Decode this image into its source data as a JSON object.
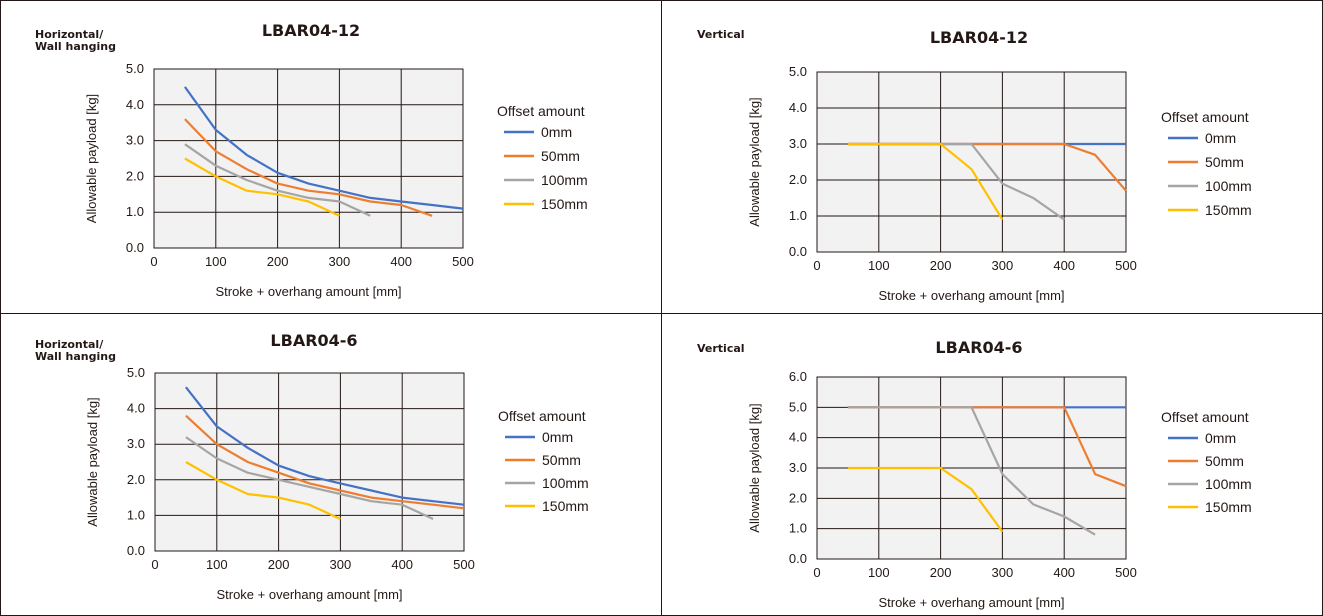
{
  "colors": {
    "border": "#231815",
    "plot_bg": "#f2f2f2",
    "grid": "#231815",
    "text": "#231815"
  },
  "legend": {
    "title": "Offset amount"
  },
  "chart_data": [
    {
      "type": "line",
      "mounting": [
        "Horizontal/",
        "Wall hanging"
      ],
      "title": "LBAR04-12",
      "xlabel": "Stroke + overhang amount [mm]",
      "ylabel": "Allowable payload [kg]",
      "xlim": [
        0,
        500
      ],
      "ylim": [
        0,
        5
      ],
      "xticks": [
        0,
        100,
        200,
        300,
        400,
        500
      ],
      "xtick_labels": [
        "0",
        "100",
        "200",
        "300",
        "400",
        "500"
      ],
      "yticks": [
        0,
        1,
        2,
        3,
        4,
        5
      ],
      "ytick_labels": [
        "0.0",
        "1.0",
        "2.0",
        "3.0",
        "4.0",
        "5.0"
      ],
      "grid": true,
      "legend_position": "right",
      "series": [
        {
          "name": "0mm",
          "color": "#4472c4",
          "points": [
            [
              50,
              4.5
            ],
            [
              100,
              3.3
            ],
            [
              150,
              2.6
            ],
            [
              200,
              2.1
            ],
            [
              250,
              1.8
            ],
            [
              300,
              1.6
            ],
            [
              350,
              1.4
            ],
            [
              400,
              1.3
            ],
            [
              450,
              1.2
            ],
            [
              500,
              1.1
            ]
          ]
        },
        {
          "name": "50mm",
          "color": "#ed7d31",
          "points": [
            [
              50,
              3.6
            ],
            [
              100,
              2.7
            ],
            [
              150,
              2.2
            ],
            [
              200,
              1.8
            ],
            [
              250,
              1.6
            ],
            [
              300,
              1.5
            ],
            [
              350,
              1.3
            ],
            [
              400,
              1.2
            ],
            [
              450,
              0.9
            ]
          ]
        },
        {
          "name": "100mm",
          "color": "#a5a5a5",
          "points": [
            [
              50,
              2.9
            ],
            [
              100,
              2.3
            ],
            [
              150,
              1.9
            ],
            [
              200,
              1.6
            ],
            [
              250,
              1.4
            ],
            [
              300,
              1.3
            ],
            [
              350,
              0.9
            ]
          ]
        },
        {
          "name": "150mm",
          "color": "#ffc000",
          "points": [
            [
              50,
              2.5
            ],
            [
              100,
              2.0
            ],
            [
              150,
              1.6
            ],
            [
              200,
              1.5
            ],
            [
              250,
              1.3
            ],
            [
              300,
              0.9
            ]
          ]
        }
      ]
    },
    {
      "type": "line",
      "mounting": [
        "Vertical"
      ],
      "title": "LBAR04-12",
      "xlabel": "Stroke + overhang amount [mm]",
      "ylabel": "Allowable payload [kg]",
      "xlim": [
        0,
        500
      ],
      "ylim": [
        0,
        5
      ],
      "xticks": [
        0,
        100,
        200,
        300,
        400,
        500
      ],
      "xtick_labels": [
        "0",
        "100",
        "200",
        "300",
        "400",
        "500"
      ],
      "yticks": [
        0,
        1,
        2,
        3,
        4,
        5
      ],
      "ytick_labels": [
        "0.0",
        "1.0",
        "2.0",
        "3.0",
        "4.0",
        "5.0"
      ],
      "grid": true,
      "legend_position": "right",
      "series": [
        {
          "name": "0mm",
          "color": "#4472c4",
          "points": [
            [
              50,
              3.0
            ],
            [
              100,
              3.0
            ],
            [
              150,
              3.0
            ],
            [
              200,
              3.0
            ],
            [
              250,
              3.0
            ],
            [
              300,
              3.0
            ],
            [
              350,
              3.0
            ],
            [
              400,
              3.0
            ],
            [
              450,
              3.0
            ],
            [
              500,
              3.0
            ]
          ]
        },
        {
          "name": "50mm",
          "color": "#ed7d31",
          "points": [
            [
              50,
              3.0
            ],
            [
              100,
              3.0
            ],
            [
              150,
              3.0
            ],
            [
              200,
              3.0
            ],
            [
              250,
              3.0
            ],
            [
              300,
              3.0
            ],
            [
              350,
              3.0
            ],
            [
              400,
              3.0
            ],
            [
              450,
              2.7
            ],
            [
              500,
              1.7
            ]
          ]
        },
        {
          "name": "100mm",
          "color": "#a5a5a5",
          "points": [
            [
              50,
              3.0
            ],
            [
              100,
              3.0
            ],
            [
              150,
              3.0
            ],
            [
              200,
              3.0
            ],
            [
              250,
              3.0
            ],
            [
              300,
              1.9
            ],
            [
              350,
              1.5
            ],
            [
              400,
              0.9
            ]
          ]
        },
        {
          "name": "150mm",
          "color": "#ffc000",
          "points": [
            [
              50,
              3.0
            ],
            [
              100,
              3.0
            ],
            [
              150,
              3.0
            ],
            [
              200,
              3.0
            ],
            [
              250,
              2.3
            ],
            [
              300,
              0.9
            ]
          ]
        }
      ]
    },
    {
      "type": "line",
      "mounting": [
        "Horizontal/",
        "Wall hanging"
      ],
      "title": "LBAR04-6",
      "xlabel": "Stroke + overhang amount [mm]",
      "ylabel": "Allowable payload [kg]",
      "xlim": [
        0,
        500
      ],
      "ylim": [
        0,
        5
      ],
      "xticks": [
        0,
        100,
        200,
        300,
        400,
        500
      ],
      "xtick_labels": [
        "0",
        "100",
        "200",
        "300",
        "400",
        "500"
      ],
      "yticks": [
        0,
        1,
        2,
        3,
        4,
        5
      ],
      "ytick_labels": [
        "0.0",
        "1.0",
        "2.0",
        "3.0",
        "4.0",
        "5.0"
      ],
      "grid": true,
      "legend_position": "right",
      "series": [
        {
          "name": "0mm",
          "color": "#4472c4",
          "points": [
            [
              50,
              4.6
            ],
            [
              100,
              3.5
            ],
            [
              150,
              2.9
            ],
            [
              200,
              2.4
            ],
            [
              250,
              2.1
            ],
            [
              300,
              1.9
            ],
            [
              350,
              1.7
            ],
            [
              400,
              1.5
            ],
            [
              450,
              1.4
            ],
            [
              500,
              1.3
            ]
          ]
        },
        {
          "name": "50mm",
          "color": "#ed7d31",
          "points": [
            [
              50,
              3.8
            ],
            [
              100,
              3.0
            ],
            [
              150,
              2.5
            ],
            [
              200,
              2.2
            ],
            [
              250,
              1.9
            ],
            [
              300,
              1.7
            ],
            [
              350,
              1.5
            ],
            [
              400,
              1.4
            ],
            [
              450,
              1.3
            ],
            [
              500,
              1.2
            ]
          ]
        },
        {
          "name": "100mm",
          "color": "#a5a5a5",
          "points": [
            [
              50,
              3.2
            ],
            [
              100,
              2.6
            ],
            [
              150,
              2.2
            ],
            [
              200,
              2.0
            ],
            [
              250,
              1.8
            ],
            [
              300,
              1.6
            ],
            [
              350,
              1.4
            ],
            [
              400,
              1.3
            ],
            [
              450,
              0.9
            ]
          ]
        },
        {
          "name": "150mm",
          "color": "#ffc000",
          "points": [
            [
              50,
              2.5
            ],
            [
              100,
              2.0
            ],
            [
              150,
              1.6
            ],
            [
              200,
              1.5
            ],
            [
              250,
              1.3
            ],
            [
              300,
              0.9
            ]
          ]
        }
      ]
    },
    {
      "type": "line",
      "mounting": [
        "Vertical"
      ],
      "title": "LBAR04-6",
      "xlabel": "Stroke + overhang amount [mm]",
      "ylabel": "Allowable payload [kg]",
      "xlim": [
        0,
        500
      ],
      "ylim": [
        0,
        6
      ],
      "xticks": [
        0,
        100,
        200,
        300,
        400,
        500
      ],
      "xtick_labels": [
        "0",
        "100",
        "200",
        "300",
        "400",
        "500"
      ],
      "yticks": [
        0,
        1,
        2,
        3,
        4,
        5,
        6
      ],
      "ytick_labels": [
        "0.0",
        "1.0",
        "2.0",
        "3.0",
        "4.0",
        "5.0",
        "6.0"
      ],
      "grid": true,
      "legend_position": "right",
      "series": [
        {
          "name": "0mm",
          "color": "#4472c4",
          "points": [
            [
              50,
              5.0
            ],
            [
              100,
              5.0
            ],
            [
              150,
              5.0
            ],
            [
              200,
              5.0
            ],
            [
              250,
              5.0
            ],
            [
              300,
              5.0
            ],
            [
              350,
              5.0
            ],
            [
              400,
              5.0
            ],
            [
              450,
              5.0
            ],
            [
              500,
              5.0
            ]
          ]
        },
        {
          "name": "50mm",
          "color": "#ed7d31",
          "points": [
            [
              50,
              5.0
            ],
            [
              100,
              5.0
            ],
            [
              150,
              5.0
            ],
            [
              200,
              5.0
            ],
            [
              250,
              5.0
            ],
            [
              300,
              5.0
            ],
            [
              350,
              5.0
            ],
            [
              400,
              5.0
            ],
            [
              450,
              2.8
            ],
            [
              500,
              2.4
            ]
          ]
        },
        {
          "name": "100mm",
          "color": "#a5a5a5",
          "points": [
            [
              50,
              5.0
            ],
            [
              100,
              5.0
            ],
            [
              150,
              5.0
            ],
            [
              200,
              5.0
            ],
            [
              250,
              5.0
            ],
            [
              300,
              2.8
            ],
            [
              350,
              1.8
            ],
            [
              400,
              1.4
            ],
            [
              450,
              0.8
            ]
          ]
        },
        {
          "name": "150mm",
          "color": "#ffc000",
          "points": [
            [
              50,
              3.0
            ],
            [
              100,
              3.0
            ],
            [
              150,
              3.0
            ],
            [
              200,
              3.0
            ],
            [
              250,
              2.3
            ],
            [
              300,
              0.9
            ]
          ]
        }
      ]
    }
  ]
}
